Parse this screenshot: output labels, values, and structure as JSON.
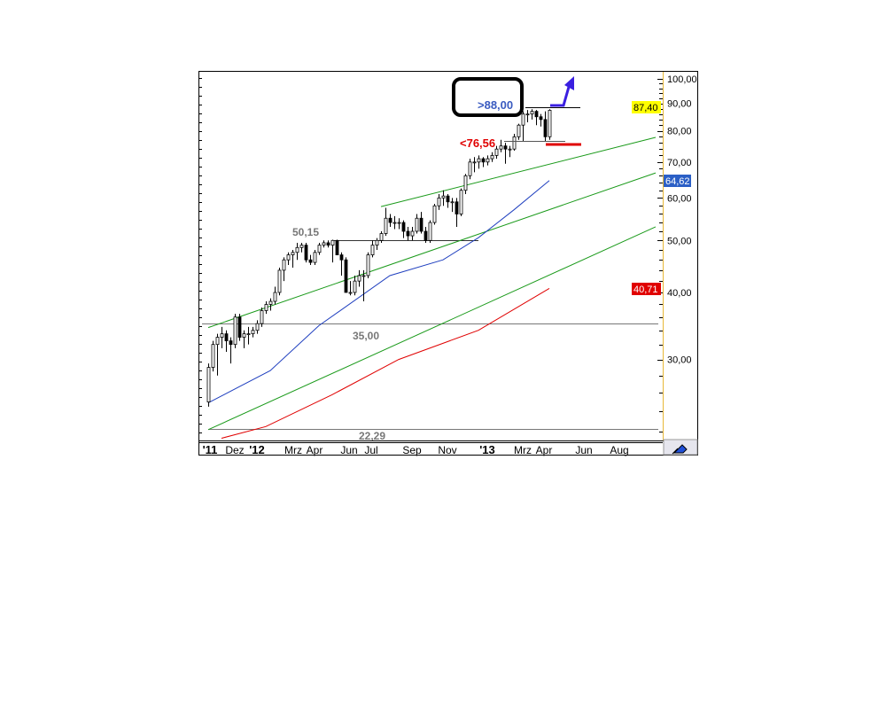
{
  "chart_data": {
    "type": "candlestick",
    "y_scale": "log",
    "ylim": [
      21,
      101
    ],
    "grid": false,
    "y_ticks": [
      "100,00",
      "90,00",
      "80,00",
      "70,00",
      "60,00",
      "50,00",
      "40,00",
      "30,00"
    ],
    "y_tick_values": [
      100,
      90,
      80,
      70,
      60,
      50,
      40,
      30
    ],
    "x_ticks": [
      "'11",
      "Dez",
      "'12",
      "Mrz",
      "Apr",
      "Jun",
      "Jul",
      "Sep",
      "Nov",
      "'13",
      "Mrz",
      "Apr",
      "Jun",
      "Aug"
    ],
    "candles_ohlc": [
      [
        "2011-10-17",
        25,
        29.5,
        24.5,
        29
      ],
      [
        "2011-10-24",
        29,
        32.5,
        28.5,
        32
      ],
      [
        "2011-10-31",
        32,
        33.5,
        28,
        33
      ],
      [
        "2011-11-07",
        33,
        34.5,
        31.5,
        33.5
      ],
      [
        "2011-11-14",
        33.5,
        34,
        31,
        32.5
      ],
      [
        "2011-11-21",
        32.5,
        33,
        29.5,
        32
      ],
      [
        "2011-11-28",
        32,
        36.5,
        31.5,
        36
      ],
      [
        "2011-12-05",
        36,
        36.5,
        32.5,
        33
      ],
      [
        "2011-12-12",
        33,
        34,
        31.5,
        33.5
      ],
      [
        "2011-12-19",
        33.5,
        34.5,
        32,
        33.5
      ],
      [
        "2011-12-26",
        33.5,
        34.5,
        33,
        34
      ],
      [
        "2012-01-02",
        34,
        35.5,
        33.5,
        35
      ],
      [
        "2012-01-09",
        35,
        37.5,
        34.5,
        37
      ],
      [
        "2012-01-16",
        37,
        38.5,
        36.5,
        38
      ],
      [
        "2012-01-23",
        38,
        39,
        37,
        38.5
      ],
      [
        "2012-01-30",
        38.5,
        41,
        38,
        40
      ],
      [
        "2012-02-06",
        40,
        44.5,
        39.5,
        44
      ],
      [
        "2012-02-13",
        44,
        46.5,
        42,
        46
      ],
      [
        "2012-02-20",
        46,
        47.5,
        45,
        47
      ],
      [
        "2012-02-27",
        47,
        48,
        44.5,
        47.5
      ],
      [
        "2012-03-05",
        47.5,
        49.5,
        46,
        48.5
      ],
      [
        "2012-03-12",
        48.5,
        49.5,
        47.5,
        49
      ],
      [
        "2012-03-19",
        49,
        49.5,
        45.5,
        46
      ],
      [
        "2012-03-26",
        46,
        47,
        45,
        45.5
      ],
      [
        "2012-04-02",
        45.5,
        48,
        45,
        47.5
      ],
      [
        "2012-04-09",
        47.5,
        49.5,
        47,
        49
      ],
      [
        "2012-04-16",
        49,
        50,
        48.5,
        49.5
      ],
      [
        "2012-04-23",
        49.5,
        50,
        48.5,
        49
      ],
      [
        "2012-04-30",
        49,
        50.15,
        45.5,
        50
      ],
      [
        "2012-05-07",
        50,
        50.15,
        47,
        47
      ],
      [
        "2012-05-14",
        47,
        47.5,
        43,
        46
      ],
      [
        "2012-05-21",
        46,
        46.5,
        40,
        40
      ],
      [
        "2012-05-28",
        40,
        42,
        39.5,
        40
      ],
      [
        "2012-06-04",
        40,
        43,
        39.5,
        42
      ],
      [
        "2012-06-11",
        42,
        44,
        41,
        43
      ],
      [
        "2012-06-18",
        43,
        44,
        38.5,
        43
      ],
      [
        "2012-06-25",
        43,
        47.5,
        42.5,
        47
      ],
      [
        "2012-07-02",
        47,
        50,
        46.5,
        49
      ],
      [
        "2012-07-09",
        49,
        50.5,
        48,
        50
      ],
      [
        "2012-07-16",
        50,
        52,
        49.5,
        51.5
      ],
      [
        "2012-07-23",
        51.5,
        57.5,
        51,
        55
      ],
      [
        "2012-07-30",
        55,
        56,
        53,
        54
      ],
      [
        "2012-08-06",
        54,
        55.5,
        52.5,
        54
      ],
      [
        "2012-08-13",
        54,
        55,
        52.5,
        54
      ],
      [
        "2012-08-20",
        54,
        54.5,
        50.5,
        52
      ],
      [
        "2012-08-27",
        52,
        53,
        50,
        51
      ],
      [
        "2012-09-03",
        51,
        53,
        50,
        52
      ],
      [
        "2012-09-10",
        52,
        56,
        51.5,
        55
      ],
      [
        "2012-09-17",
        55,
        56.5,
        51.5,
        52
      ],
      [
        "2012-09-24",
        52,
        53,
        49.5,
        50
      ],
      [
        "2012-10-01",
        50,
        54.5,
        49.5,
        54
      ],
      [
        "2012-10-08",
        54,
        58.5,
        53.5,
        58
      ],
      [
        "2012-10-15",
        58,
        61,
        57,
        60
      ],
      [
        "2012-10-22",
        60,
        62,
        58,
        60.5
      ],
      [
        "2012-10-29",
        60.5,
        61,
        57.5,
        59
      ],
      [
        "2012-11-05",
        59,
        60,
        56.5,
        59
      ],
      [
        "2012-11-12",
        59,
        60,
        53,
        56
      ],
      [
        "2012-11-19",
        56,
        62.5,
        55.5,
        62
      ],
      [
        "2012-11-26",
        62,
        66.5,
        61,
        66
      ],
      [
        "2012-12-03",
        66,
        71,
        65,
        70
      ],
      [
        "2012-12-10",
        70,
        71.5,
        67,
        70
      ],
      [
        "2012-12-17",
        70,
        72,
        68,
        71
      ],
      [
        "2012-12-24",
        71,
        71.5,
        68.5,
        70
      ],
      [
        "2012-12-31",
        70,
        72,
        69,
        71
      ],
      [
        "2013-01-07",
        71,
        73,
        70,
        72
      ],
      [
        "2013-01-14",
        72,
        75,
        71,
        74
      ],
      [
        "2013-01-21",
        74,
        77,
        73,
        75
      ],
      [
        "2013-01-28",
        75,
        76,
        69.5,
        74
      ],
      [
        "2013-02-04",
        74,
        75,
        71.5,
        74
      ],
      [
        "2013-02-11",
        74,
        79,
        73.5,
        78
      ],
      [
        "2013-02-18",
        78,
        82.5,
        77,
        82
      ],
      [
        "2013-02-25",
        82,
        87,
        76.5,
        86
      ],
      [
        "2013-03-04",
        86,
        87.5,
        83,
        86
      ],
      [
        "2013-03-11",
        86,
        87.8,
        84,
        87
      ],
      [
        "2013-03-18",
        87,
        87.5,
        82,
        85
      ],
      [
        "2013-03-25",
        85,
        86,
        81.5,
        84
      ],
      [
        "2013-04-01",
        84,
        87,
        76.56,
        78
      ],
      [
        "2013-04-08",
        78,
        87.8,
        77,
        87.4
      ]
    ],
    "moving_average_blue": {
      "color": "#1f3fbf",
      "last_value_label": "64,62",
      "points": [
        [
          "2011-10-17",
          24.9
        ],
        [
          "2012-01-23",
          28.6
        ],
        [
          "2012-04-09",
          34.7
        ],
        [
          "2012-07-30",
          43
        ],
        [
          "2012-10-22",
          46
        ],
        [
          "2012-12-17",
          50.6
        ],
        [
          "2013-02-11",
          57
        ],
        [
          "2013-04-08",
          64.62
        ]
      ]
    },
    "moving_average_red": {
      "color": "#e00000",
      "last_value_label": "40,71",
      "points": [
        [
          "2011-11-07",
          21.4
        ],
        [
          "2012-01-16",
          22.5
        ],
        [
          "2012-04-30",
          25.8
        ],
        [
          "2012-08-13",
          30
        ],
        [
          "2012-12-17",
          34
        ],
        [
          "2013-04-08",
          40.71
        ]
      ]
    },
    "trendlines": [
      {
        "color": "#1a9a1a",
        "from": [
          "2011-10-17",
          34.4
        ],
        "to": [
          "2013-09-23",
          66.8
        ]
      },
      {
        "color": "#1a9a1a",
        "from": [
          "2012-07-16",
          57.8
        ],
        "to": [
          "2013-09-23",
          77.8
        ]
      },
      {
        "color": "#1a9a1a",
        "from": [
          "2011-10-17",
          22.2
        ],
        "to": [
          "2013-09-23",
          53.0
        ]
      }
    ],
    "horizontal_levels": [
      {
        "value": 50.15,
        "label": "50,15",
        "color": "#777777"
      },
      {
        "value": 35.0,
        "label": "35,00",
        "color": "#777777"
      },
      {
        "value": 22.29,
        "label": "22,29",
        "color": "#777777"
      }
    ],
    "annotations": {
      "breakout_label": ">88,00",
      "breakout_value": 88.0,
      "breakout_color": "#3a5bc0",
      "stop_label": "<76,56",
      "stop_value": 76.56,
      "stop_color": "#e00000",
      "last_price_label": "87,40",
      "last_price_bg": "#ffff00"
    },
    "axis_line_color": "#e8b838"
  }
}
